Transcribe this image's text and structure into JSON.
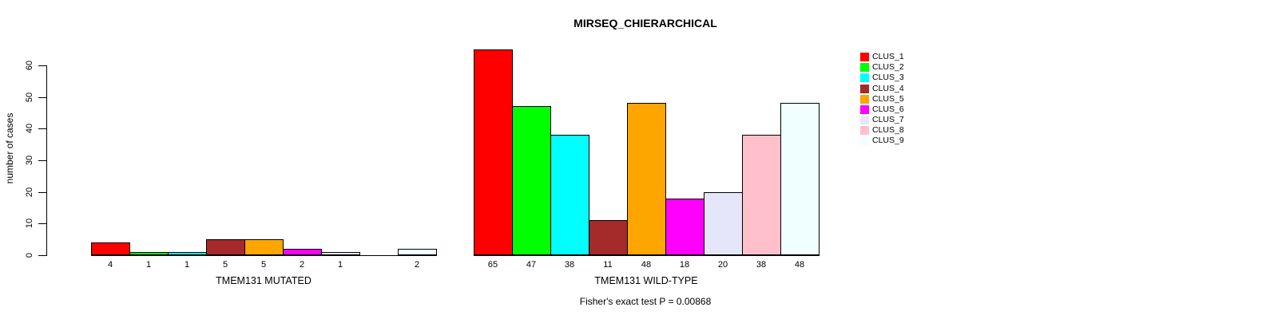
{
  "chart_data": {
    "type": "bar",
    "title": "MIRSEQ_CHIERARCHICAL",
    "ylabel": "number of cases",
    "xlabel": "",
    "ylim": [
      0,
      65
    ],
    "yticks": [
      0,
      10,
      20,
      30,
      40,
      50,
      60
    ],
    "grid": false,
    "legend_position": "right-top",
    "categories": [
      "CLUS_1",
      "CLUS_2",
      "CLUS_3",
      "CLUS_4",
      "CLUS_5",
      "CLUS_6",
      "CLUS_7",
      "CLUS_8",
      "CLUS_9"
    ],
    "series_colors": [
      "#FF0000",
      "#00FF00",
      "#00FFFF",
      "#A52A2A",
      "#FFA500",
      "#FF00FF",
      "#E6E6FA",
      "#FFC0CB",
      "#F0FFFF"
    ],
    "groups": [
      {
        "label": "TMEM131 MUTATED",
        "values": [
          4,
          1,
          1,
          5,
          5,
          2,
          1,
          0,
          2
        ],
        "value_labels": [
          "4",
          "1",
          "1",
          "5",
          "5",
          "2",
          "1",
          "",
          "2"
        ]
      },
      {
        "label": "TMEM131 WILD-TYPE",
        "values": [
          65,
          47,
          38,
          11,
          48,
          18,
          20,
          38,
          48
        ],
        "value_labels": [
          "65",
          "47",
          "38",
          "11",
          "48",
          "18",
          "20",
          "38",
          "48"
        ]
      }
    ],
    "legend": [
      {
        "label": "CLUS_1",
        "color": "#FF0000"
      },
      {
        "label": "CLUS_2",
        "color": "#00FF00"
      },
      {
        "label": "CLUS_3",
        "color": "#00FFFF"
      },
      {
        "label": "CLUS_4",
        "color": "#A52A2A"
      },
      {
        "label": "CLUS_5",
        "color": "#FFA500"
      },
      {
        "label": "CLUS_6",
        "color": "#FF00FF"
      },
      {
        "label": "CLUS_7",
        "color": "#E6E6FA"
      },
      {
        "label": "CLUS_8",
        "color": "#FFC0CB"
      },
      {
        "label": "CLUS_9",
        "color": "#F0FFFF"
      }
    ],
    "annotation": "Fisher's exact test P = 0.00868"
  }
}
